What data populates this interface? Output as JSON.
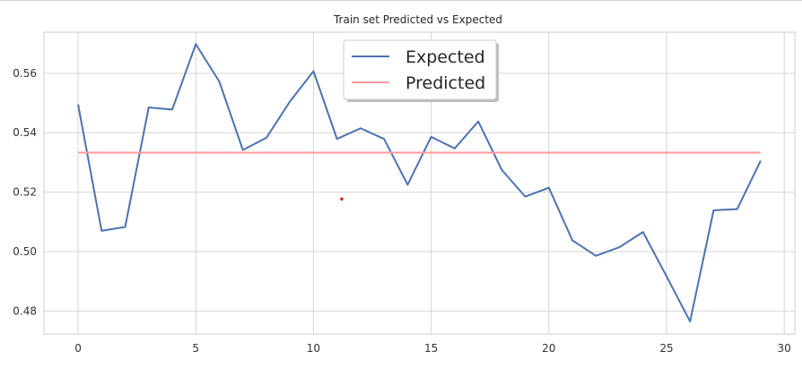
{
  "chart_data": {
    "type": "line",
    "title": "Train set Predicted vs Expected",
    "xlabel": "",
    "ylabel": "",
    "xlim": [
      -1.45,
      30.45
    ],
    "ylim": [
      0.4723,
      0.5738
    ],
    "xticks": [
      0,
      5,
      10,
      15,
      20,
      25,
      30
    ],
    "yticks": [
      0.48,
      0.5,
      0.52,
      0.54,
      0.56
    ],
    "xtick_labels": [
      "0",
      "5",
      "10",
      "15",
      "20",
      "25",
      "30"
    ],
    "ytick_labels": [
      "0.48",
      "0.50",
      "0.52",
      "0.54",
      "0.56"
    ],
    "grid": true,
    "legend_position": "top-center",
    "series": [
      {
        "name": "Expected",
        "color": "#4C72B0",
        "x": [
          0,
          1,
          2,
          3,
          4,
          5,
          6,
          7,
          8,
          9,
          10,
          11,
          12,
          13,
          14,
          15,
          16,
          17,
          18,
          19,
          20,
          21,
          22,
          23,
          24,
          25,
          26,
          27,
          28,
          29
        ],
        "y": [
          0.5495,
          0.507,
          0.5083,
          0.5485,
          0.5478,
          0.5698,
          0.5572,
          0.5342,
          0.5383,
          0.5505,
          0.5607,
          0.5379,
          0.5415,
          0.5379,
          0.5225,
          0.5386,
          0.5347,
          0.5438,
          0.5275,
          0.5185,
          0.5215,
          0.5038,
          0.4986,
          0.5015,
          0.5066,
          0.4917,
          0.4765,
          0.5139,
          0.5143,
          0.5306
        ]
      },
      {
        "name": "Predicted",
        "color": "#FF9999",
        "x": [
          0,
          1,
          2,
          3,
          4,
          5,
          6,
          7,
          8,
          9,
          10,
          11,
          12,
          13,
          14,
          15,
          16,
          17,
          18,
          19,
          20,
          21,
          22,
          23,
          24,
          25,
          26,
          27,
          28,
          29
        ],
        "y": [
          0.5333,
          0.5333,
          0.5333,
          0.5333,
          0.5333,
          0.5333,
          0.5333,
          0.5333,
          0.5333,
          0.5333,
          0.5333,
          0.5333,
          0.5333,
          0.5333,
          0.5333,
          0.5333,
          0.5333,
          0.5333,
          0.5333,
          0.5333,
          0.5333,
          0.5333,
          0.5333,
          0.5333,
          0.5333,
          0.5333,
          0.5333,
          0.5333,
          0.5333,
          0.5333
        ]
      }
    ],
    "annotations": [
      {
        "type": "point",
        "x": 11.2,
        "y": 0.5177,
        "color": "#d62728"
      }
    ]
  }
}
